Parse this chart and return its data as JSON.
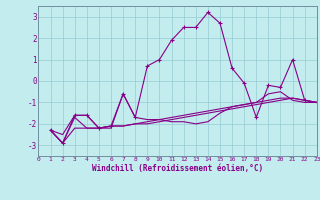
{
  "xlabel": "Windchill (Refroidissement éolien,°C)",
  "bg_color": "#c2ecee",
  "line_color": "#880088",
  "grid_color": "#96ccd4",
  "xlim": [
    0,
    23
  ],
  "ylim": [
    -3.5,
    3.5
  ],
  "yticks": [
    -3,
    -2,
    -1,
    0,
    1,
    2,
    3
  ],
  "xticks": [
    0,
    1,
    2,
    3,
    4,
    5,
    6,
    7,
    8,
    9,
    10,
    11,
    12,
    13,
    14,
    15,
    16,
    17,
    18,
    19,
    20,
    21,
    22,
    23
  ],
  "series": [
    {
      "x": [
        1,
        2,
        3,
        4,
        5,
        6,
        7,
        8,
        9,
        10,
        11,
        12,
        13,
        14,
        15,
        16,
        17,
        18,
        19,
        20,
        21,
        22,
        23
      ],
      "y": [
        -2.3,
        -2.5,
        -1.6,
        -1.6,
        -2.2,
        -2.2,
        -0.6,
        -1.7,
        -1.8,
        -1.8,
        -1.9,
        -1.9,
        -2.0,
        -1.9,
        -1.5,
        -1.2,
        -1.1,
        -1.0,
        -0.6,
        -0.5,
        -0.9,
        -1.0,
        -1.0
      ],
      "has_markers": false
    },
    {
      "x": [
        1,
        2,
        3,
        4,
        5,
        6,
        7,
        8,
        9,
        10,
        11,
        12,
        13,
        14,
        15,
        16,
        17,
        18,
        19,
        20,
        21,
        22,
        23
      ],
      "y": [
        -2.3,
        -2.9,
        -1.7,
        -2.2,
        -2.2,
        -2.1,
        -2.1,
        -2.0,
        -2.0,
        -1.9,
        -1.8,
        -1.7,
        -1.6,
        -1.5,
        -1.4,
        -1.3,
        -1.2,
        -1.1,
        -1.0,
        -0.9,
        -0.8,
        -0.9,
        -1.0
      ],
      "has_markers": false
    },
    {
      "x": [
        1,
        2,
        3,
        4,
        5,
        6,
        7,
        8,
        9,
        10,
        11,
        12,
        13,
        14,
        15,
        16,
        17,
        18,
        19,
        20,
        21,
        22,
        23
      ],
      "y": [
        -2.3,
        -2.9,
        -2.2,
        -2.2,
        -2.2,
        -2.1,
        -2.1,
        -2.0,
        -1.9,
        -1.8,
        -1.7,
        -1.6,
        -1.5,
        -1.4,
        -1.3,
        -1.2,
        -1.1,
        -1.0,
        -0.9,
        -0.8,
        -0.8,
        -0.9,
        -1.0
      ],
      "has_markers": false
    },
    {
      "x": [
        1,
        2,
        3,
        4,
        5,
        6,
        7,
        8,
        9,
        10,
        11,
        12,
        13,
        14,
        15,
        16,
        17,
        18,
        19,
        20,
        21,
        22,
        23
      ],
      "y": [
        -2.3,
        -2.9,
        -1.6,
        -1.6,
        -2.2,
        -2.1,
        -0.6,
        -1.7,
        0.7,
        1.0,
        1.9,
        2.5,
        2.5,
        3.2,
        2.7,
        0.6,
        -0.1,
        -1.7,
        -0.2,
        -0.3,
        1.0,
        -0.9,
        -1.0
      ],
      "has_markers": true
    }
  ]
}
